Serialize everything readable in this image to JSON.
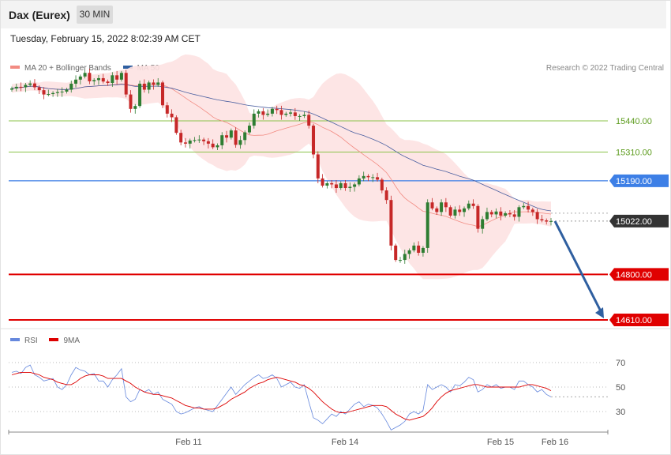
{
  "header": {
    "title": "Dax (Eurex)",
    "timeframe": "30 MIN",
    "datetime": "Tuesday, February 15, 2022 8:02:39 AM CET"
  },
  "legend": {
    "ma20_label": "MA 20 + Bollinger Bands",
    "ma50_label": "MA 50",
    "credit": "Research © 2022 Trading Central"
  },
  "rsi_legend": {
    "rsi_label": "RSI",
    "ma_label": "9MA"
  },
  "colors": {
    "bull": "#2e7d32",
    "bear": "#c62828",
    "bollinger_fill": "#fde2e2",
    "ma20": "#f28b82",
    "ma50": "#4a5fa0",
    "resistance": "#8bc34a",
    "pivot": "#3d7fe6",
    "support": "#e00000",
    "current": "#333333",
    "rsi": "#6688dd",
    "rsi_ma": "#dd0000",
    "arrow": "#2f5fa0"
  },
  "chart_data": {
    "type": "candlestick",
    "ylim": [
      14600,
      15620
    ],
    "x_labels": [
      "Feb 11",
      "Feb 14",
      "Feb 15",
      "Feb 16"
    ],
    "levels": [
      {
        "name": "resistance-2",
        "value": 15440,
        "label": "15440.00",
        "kind": "resistance"
      },
      {
        "name": "resistance-1",
        "value": 15310,
        "label": "15310.00",
        "kind": "resistance"
      },
      {
        "name": "pivot",
        "value": 15190,
        "label": "15190.00",
        "kind": "pivot"
      },
      {
        "name": "current",
        "value": 15022,
        "label": "15022.00",
        "kind": "current"
      },
      {
        "name": "support-1",
        "value": 14800,
        "label": "14800.00",
        "kind": "support"
      },
      {
        "name": "support-2",
        "value": 14610,
        "label": "14610.00",
        "kind": "support"
      }
    ],
    "forecast": {
      "from": 15022,
      "to": 14610,
      "direction": "down"
    },
    "closes": [
      15575,
      15582,
      15580,
      15590,
      15596,
      15580,
      15568,
      15550,
      15552,
      15556,
      15560,
      15562,
      15570,
      15595,
      15612,
      15625,
      15640,
      15605,
      15610,
      15618,
      15604,
      15598,
      15630,
      15612,
      15640,
      15550,
      15490,
      15502,
      15595,
      15570,
      15600,
      15590,
      15600,
      15505,
      15470,
      15455,
      15390,
      15350,
      15345,
      15358,
      15360,
      15362,
      15355,
      15345,
      15330,
      15338,
      15380,
      15370,
      15400,
      15340,
      15360,
      15392,
      15420,
      15470,
      15480,
      15465,
      15470,
      15490,
      15485,
      15465,
      15470,
      15475,
      15460,
      15460,
      15465,
      15420,
      15300,
      15200,
      15170,
      15180,
      15175,
      15160,
      15180,
      15160,
      15165,
      15175,
      15200,
      15210,
      15205,
      15205,
      15195,
      15150,
      15110,
      14920,
      14860,
      14860,
      14885,
      14900,
      14920,
      14890,
      14910,
      15100,
      15075,
      15060,
      15100,
      15080,
      15045,
      15070,
      15060,
      15075,
      15095,
      15085,
      14990,
      15030,
      15060,
      15050,
      15062,
      15045,
      15055,
      15050,
      15040,
      15080,
      15085,
      15070,
      15060,
      15030,
      15025,
      15020,
      15022
    ],
    "rsi": {
      "ylim": [
        14,
        88
      ],
      "levels": [
        70,
        50,
        30
      ],
      "rsi_values": [
        62,
        63,
        61,
        66,
        68,
        60,
        58,
        55,
        56,
        57,
        50,
        48,
        52,
        60,
        66,
        64,
        63,
        60,
        61,
        55,
        55,
        50,
        56,
        60,
        65,
        42,
        38,
        40,
        48,
        46,
        48,
        44,
        46,
        40,
        38,
        36,
        30,
        28,
        29,
        31,
        33,
        34,
        32,
        31,
        30,
        35,
        40,
        45,
        50,
        44,
        48,
        52,
        55,
        58,
        60,
        57,
        58,
        60,
        57,
        50,
        52,
        54,
        50,
        49,
        52,
        38,
        25,
        23,
        20,
        24,
        28,
        26,
        30,
        28,
        32,
        36,
        38,
        34,
        36,
        35,
        33,
        28,
        22,
        15,
        17,
        19,
        22,
        28,
        30,
        28,
        31,
        52,
        48,
        50,
        52,
        50,
        46,
        52,
        51,
        54,
        58,
        56,
        46,
        48,
        52,
        50,
        52,
        49,
        50,
        50,
        48,
        55,
        55,
        52,
        50,
        46,
        48,
        44,
        42
      ],
      "ma_values": [
        60,
        61,
        62,
        62,
        62,
        61,
        60,
        58,
        57,
        56,
        54,
        53,
        52,
        52,
        54,
        57,
        59,
        60,
        60,
        60,
        59,
        57,
        57,
        57,
        57,
        55,
        53,
        50,
        48,
        46,
        45,
        44,
        44,
        43,
        42,
        41,
        39,
        37,
        35,
        34,
        33,
        33,
        32,
        32,
        32,
        33,
        35,
        37,
        40,
        42,
        44,
        46,
        49,
        51,
        53,
        54,
        56,
        57,
        58,
        57,
        56,
        55,
        54,
        52,
        51,
        49,
        46,
        42,
        38,
        35,
        32,
        30,
        29,
        29,
        30,
        31,
        32,
        33,
        34,
        35,
        35,
        35,
        34,
        31,
        28,
        26,
        24,
        23,
        24,
        25,
        26,
        29,
        33,
        38,
        42,
        45,
        47,
        48,
        49,
        50,
        51,
        52,
        52,
        51,
        50,
        50,
        50,
        50,
        50,
        50,
        50,
        50,
        51,
        52,
        52,
        51,
        50,
        49,
        47
      ]
    }
  }
}
